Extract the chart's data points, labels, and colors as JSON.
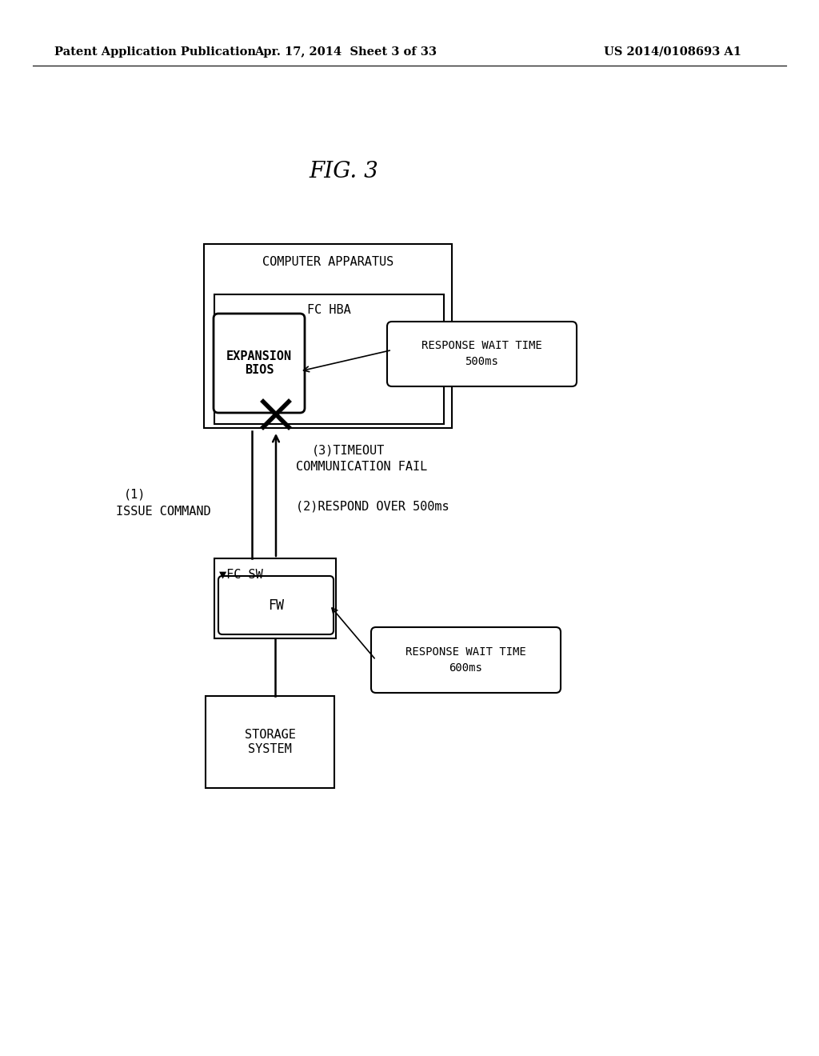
{
  "bg_color": "#ffffff",
  "header_left": "Patent Application Publication",
  "header_mid": "Apr. 17, 2014  Sheet 3 of 33",
  "header_right": "US 2014/0108693 A1",
  "fig_label": "FIG. 3",
  "computer_apparatus_label": "COMPUTER APPARATUS",
  "fc_hba_label": "FC HBA",
  "expansion_bios_label": "EXPANSION\nBIOS",
  "fc_sw_label": "▼FC SW",
  "fw_label": "FW",
  "storage_system_label": "STORAGE\nSYSTEM",
  "response_wait_time_500_line1": "RESPONSE WAIT TIME",
  "response_wait_time_500_line2": "500ms",
  "response_wait_time_600_line1": "RESPONSE WAIT TIME",
  "response_wait_time_600_line2": "600ms",
  "label_1_line1": "(1)",
  "label_1_line2": "ISSUE COMMAND",
  "label_2": "(2)RESPOND OVER 500ms",
  "label_3_line1": "(3)TIMEOUT",
  "label_3_line2": "COMMUNICATION FAIL"
}
